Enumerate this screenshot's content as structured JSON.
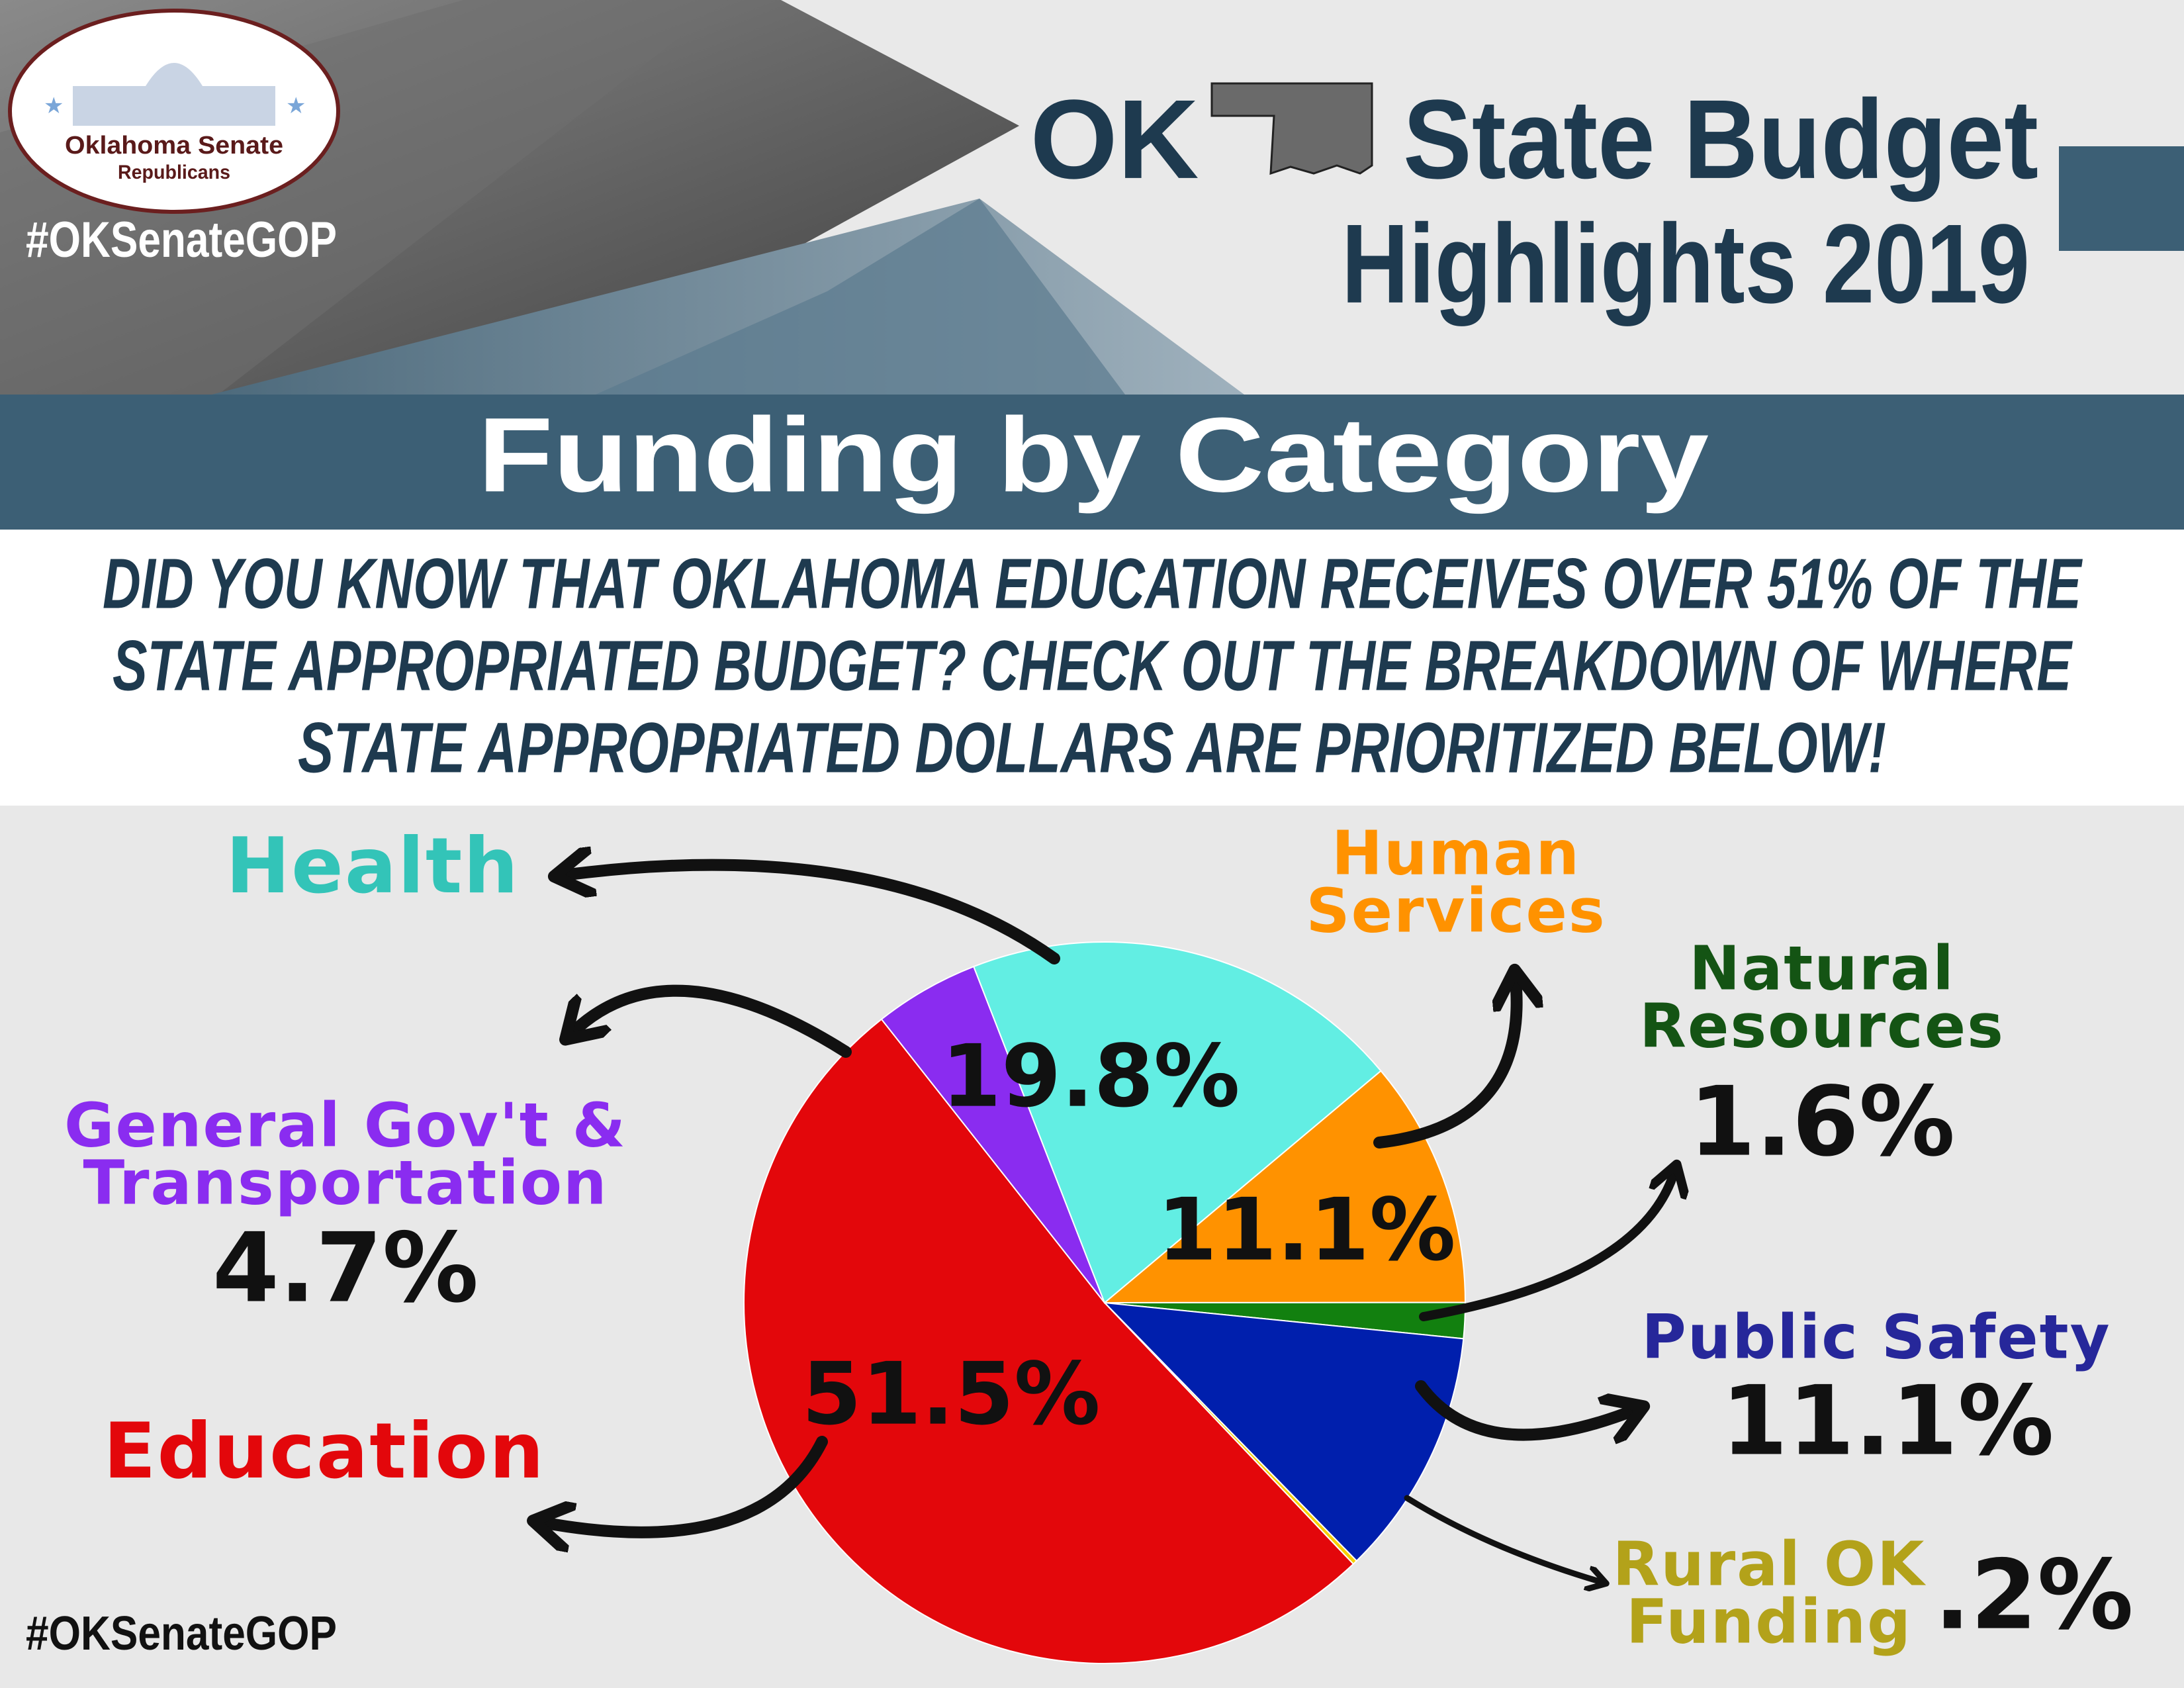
{
  "header": {
    "logo_line1": "Oklahoma Senate",
    "logo_line2": "Republicans",
    "hashtag": "#OKSenateGOP",
    "brand": "OK",
    "title_line1": "State Budget",
    "title_line2": "Highlights 2019"
  },
  "footer": {
    "hashtag": "#OKSenateGOP"
  },
  "chart_data": {
    "type": "pie",
    "title": "Funding by Category",
    "subtitle": [
      "DID YOU KNOW THAT OKLAHOMA EDUCATION RECEIVES OVER 51% OF THE",
      "STATE APPROPRIATED BUDGET? CHECK OUT THE BREAKDOWN OF WHERE",
      "STATE APPROPRIATED DOLLARS ARE PRIORITIZED BELOW!"
    ],
    "categories": [
      "Human Services",
      "Natural Resources",
      "Public Safety",
      "Rural OK Funding",
      "Education",
      "General Gov't & Transportation",
      "Health"
    ],
    "values": [
      11.1,
      1.6,
      11.1,
      0.2,
      51.5,
      4.7,
      19.8
    ],
    "value_labels": [
      "11.1%",
      "1.6%",
      "11.1%",
      ".2%",
      "51.5%",
      "4.7%",
      "19.8%"
    ],
    "colors": [
      "#ff9200",
      "#12800f",
      "#001fad",
      "#f5d000",
      "#e3070b",
      "#8a2cf0",
      "#62eee3"
    ],
    "label_colors": [
      "#ff9200",
      "#145414",
      "#26279a",
      "#b3a21a",
      "#e3070b",
      "#8a2cf0",
      "#33c4b8"
    ]
  }
}
